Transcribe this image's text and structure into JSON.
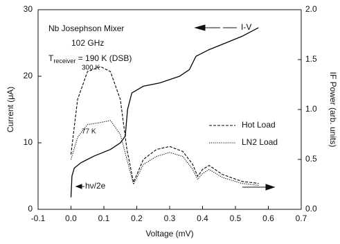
{
  "chart_data": {
    "type": "line",
    "annotations": {
      "line1": "Nb Josephson Mixer",
      "line2": "102 GHz",
      "t": "T",
      "t_sub": "receiver",
      "t_rest": " = 190 K (DSB)",
      "hot_peak": "300 K",
      "cold_peak": "77 K",
      "iv": "I-V",
      "gap": "hν/2e"
    },
    "xlabel": "Voltage (mV)",
    "ylabel": "Current (μA)",
    "y2label": "IF Power (arb. units)",
    "xlim": [
      -0.1,
      0.7
    ],
    "xticks": [
      -0.1,
      {
        "value": 0,
        "label": "0.0"
      },
      0.1,
      0.2,
      0.3,
      0.4,
      0.5,
      0.6,
      0.7
    ],
    "ylim": [
      0,
      30
    ],
    "yticks": [
      0,
      10,
      20,
      30
    ],
    "y2lim": [
      0,
      2
    ],
    "y2ticks": [
      {
        "value": 0,
        "label": "0.0"
      },
      0.5,
      {
        "value": 1,
        "label": "1.0"
      },
      1.5,
      {
        "value": 2,
        "label": "2.0"
      }
    ],
    "series": [
      {
        "name": "I-V",
        "color": "#000000",
        "dash": "solid",
        "x": [
          0,
          0.003,
          0.01,
          0.03,
          0.07,
          0.12,
          0.15,
          0.165,
          0.172,
          0.185,
          0.22,
          0.27,
          0.33,
          0.36,
          0.38,
          0.42,
          0.47,
          0.52,
          0.57
        ],
        "values": [
          1.8,
          5,
          6.2,
          7,
          8,
          9,
          10,
          11,
          15,
          17.5,
          18.5,
          19,
          20,
          21,
          23,
          24,
          25,
          26,
          27.3
        ]
      },
      {
        "name": "Hot Load",
        "color": "#000000",
        "dash": "dashed",
        "axis": "y2",
        "x": [
          0,
          0.02,
          0.05,
          0.09,
          0.12,
          0.15,
          0.17,
          0.19,
          0.22,
          0.26,
          0.3,
          0.34,
          0.37,
          0.385,
          0.4,
          0.42,
          0.46,
          0.52,
          0.57
        ],
        "values": [
          0.55,
          1.1,
          1.38,
          1.43,
          1.38,
          1.1,
          0.6,
          0.27,
          0.5,
          0.6,
          0.63,
          0.58,
          0.45,
          0.33,
          0.4,
          0.44,
          0.35,
          0.28,
          0.26
        ]
      },
      {
        "name": "LN2 Load",
        "color": "#000000",
        "dash": "dotted",
        "axis": "y2",
        "x": [
          0,
          0.02,
          0.05,
          0.09,
          0.12,
          0.15,
          0.17,
          0.19,
          0.22,
          0.26,
          0.3,
          0.34,
          0.37,
          0.385,
          0.4,
          0.42,
          0.46,
          0.52,
          0.57
        ],
        "values": [
          0.5,
          0.72,
          0.85,
          0.87,
          0.89,
          0.75,
          0.5,
          0.25,
          0.45,
          0.53,
          0.57,
          0.53,
          0.4,
          0.3,
          0.36,
          0.4,
          0.32,
          0.26,
          0.24
        ]
      }
    ]
  }
}
